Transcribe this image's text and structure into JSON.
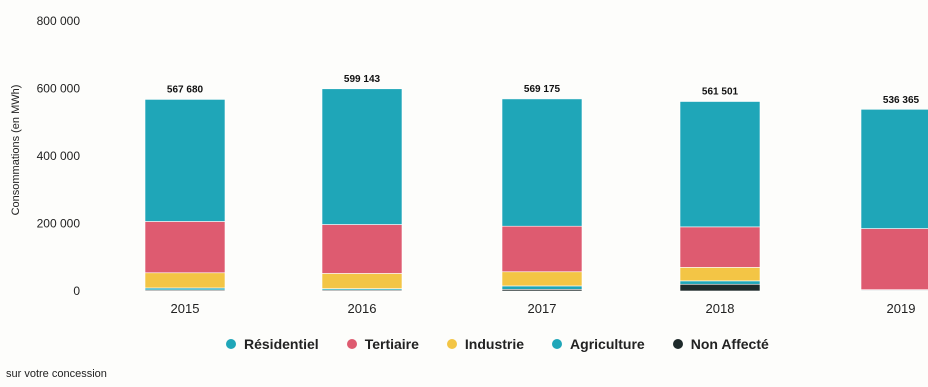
{
  "chart_data": {
    "type": "bar",
    "stacked": true,
    "ylabel": "Consommations (en MWh)",
    "ylim": [
      0,
      800000
    ],
    "yticks": [
      "0",
      "200 000",
      "400 000",
      "600 000",
      "800 000"
    ],
    "categories": [
      "2015",
      "2016",
      "2017",
      "2018",
      "2019"
    ],
    "totals_labels": [
      "567 680",
      "599 143",
      "569 175",
      "561 501",
      "536 365"
    ],
    "totals": [
      567680,
      599143,
      569175,
      561501,
      536365
    ],
    "series": [
      {
        "name": "Non Affecté",
        "color": "#1e2a2a",
        "values": [
          3000,
          3000,
          5000,
          20000,
          2000
        ]
      },
      {
        "name": "Agriculture",
        "color": "#1fa6b8",
        "values": [
          6000,
          4000,
          10000,
          10000,
          2000
        ]
      },
      {
        "name": "Industrie",
        "color": "#f3c545",
        "values": [
          45000,
          45000,
          42000,
          40000,
          0
        ]
      },
      {
        "name": "Tertiaire",
        "color": "#de5b70",
        "values": [
          152000,
          145000,
          135000,
          120000,
          181000
        ]
      },
      {
        "name": "Résidentiel",
        "color": "#1fa6b8",
        "values": [
          361680,
          402143,
          377175,
          371501,
          353365
        ]
      }
    ],
    "legend": [
      {
        "label": "Résidentiel",
        "color": "#1fa6b8"
      },
      {
        "label": "Tertiaire",
        "color": "#de5b70"
      },
      {
        "label": "Industrie",
        "color": "#f3c545"
      },
      {
        "label": "Agriculture",
        "color": "#1fa6b8"
      },
      {
        "label": "Non Affecté",
        "color": "#1e2a2a"
      }
    ],
    "legend_position": "bottom",
    "grid": false
  },
  "footer": {
    "note": "sur votre concession"
  }
}
